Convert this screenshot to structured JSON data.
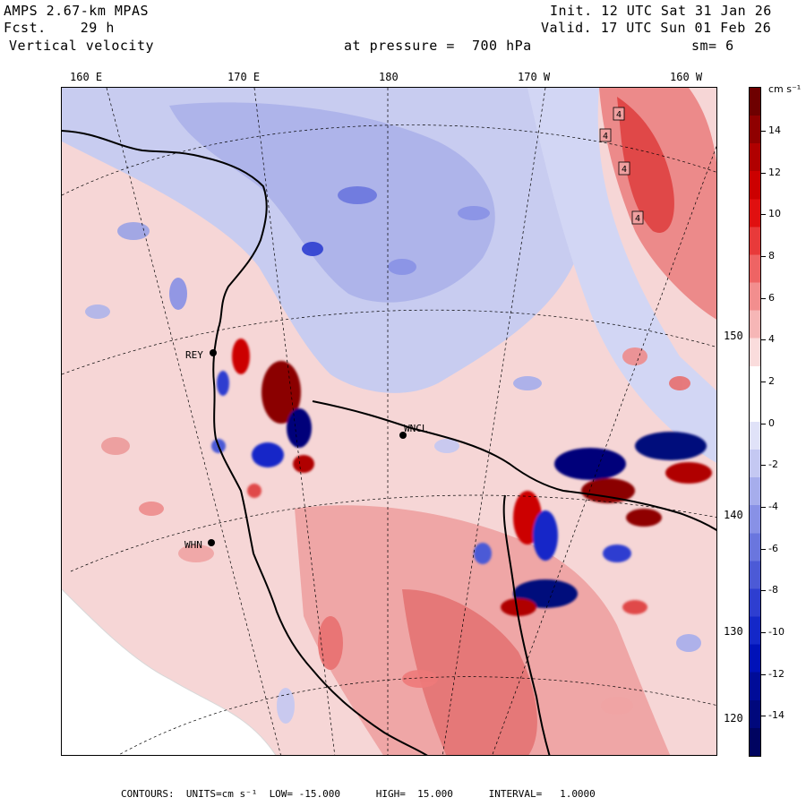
{
  "header": {
    "model": "AMPS 2.67-km MPAS",
    "fcst_label": "Fcst.",
    "fcst_value": "29 h",
    "field": "Vertical velocity",
    "level": "at pressure =  700 hPa",
    "init": "Init. 12 UTC Sat 31 Jan 26",
    "valid": "Valid. 17 UTC Sun 01 Feb 26",
    "smoothing": "sm= 6"
  },
  "map": {
    "top_longitudes": [
      "160 E",
      "170 E",
      "180",
      "170 W",
      "160 W"
    ],
    "right_latitudes": [
      "150 W",
      "140 W",
      "130 W",
      "120 W"
    ],
    "stations": [
      {
        "id": "REY",
        "label": "REY"
      },
      {
        "id": "WHN",
        "label": "WHN"
      },
      {
        "id": "WNCL",
        "label": "WNCL"
      }
    ],
    "max_markers": [
      "4",
      "4",
      "4",
      "4"
    ],
    "colors": {
      "strong_positive": "#8b0000",
      "positive": "#e05050",
      "weak_positive": "#f4c6c6",
      "weak_negative": "#cdd2f2",
      "negative": "#6f7fdc",
      "strong_negative": "#00007a",
      "land_mask": "#ffffff",
      "coast": "#000000"
    }
  },
  "colorbar": {
    "units": "cm s⁻¹",
    "labels": [
      "14",
      "12",
      "10",
      "8",
      "6",
      "4",
      "2",
      "0",
      "-2",
      "-4",
      "-6",
      "-8",
      "-10",
      "-12",
      "-14"
    ],
    "colors": [
      "#6e0000",
      "#8f0000",
      "#b00000",
      "#cc0000",
      "#e01010",
      "#e83a3a",
      "#ee6464",
      "#f28e8e",
      "#f6b6b6",
      "#fadcdc",
      "#ffffff",
      "#ffffff",
      "#e0e2f8",
      "#c4c8f2",
      "#a6adec",
      "#8891e6",
      "#6a76de",
      "#4c5ad6",
      "#2e3ed0",
      "#1428c8",
      "#0012b8",
      "#000c98",
      "#00087c",
      "#000460"
    ]
  },
  "footer": {
    "text": "CONTOURS:  UNITS=cm s⁻¹  LOW= -15.000      HIGH=  15.000      INTERVAL=   1.0000"
  }
}
